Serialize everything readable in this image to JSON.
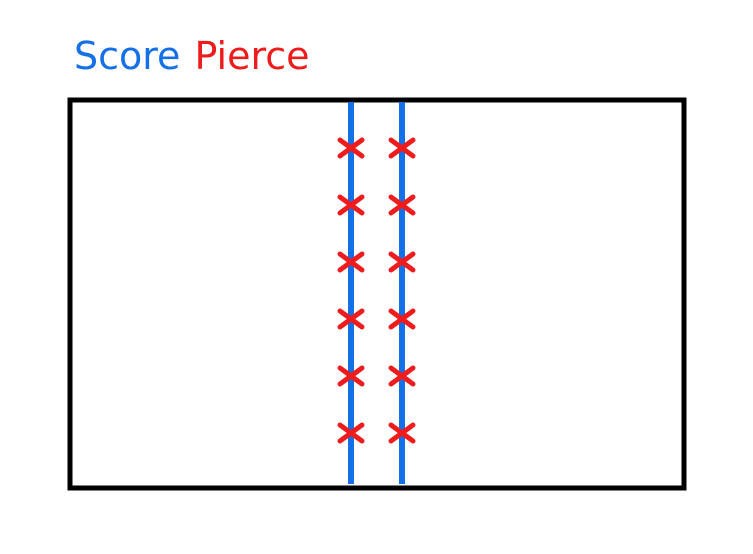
{
  "legend": {
    "score_label": "Score",
    "pierce_label": "Pierce"
  },
  "colors": {
    "score": "#1470e6",
    "pierce": "#ee1c1c",
    "frame": "#000000",
    "background": "#ffffff"
  },
  "diagram": {
    "score_line_count": 2,
    "pierce_marks_per_line": 6
  }
}
